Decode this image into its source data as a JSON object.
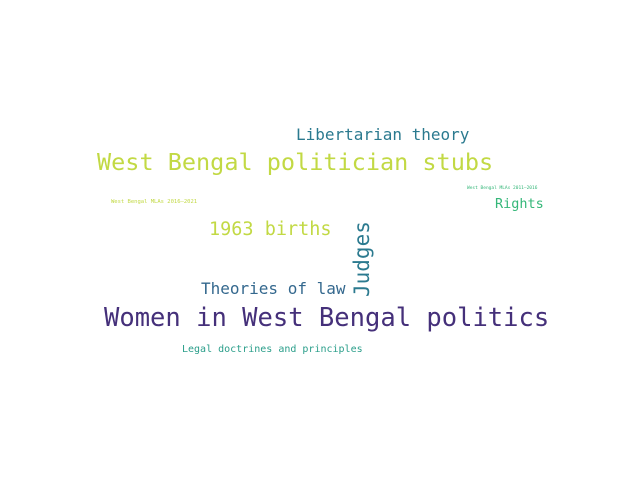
{
  "words": [
    {
      "text": "Libertarian theory",
      "color": "#2b7a8f"
    },
    {
      "text": "West Bengal politician stubs",
      "color": "#c2d944"
    },
    {
      "text": "West Bengal MLAs 2011–2016",
      "color": "#35b779"
    },
    {
      "text": "West Bengal MLAs 2016–2021",
      "color": "#c2d944"
    },
    {
      "text": "Rights",
      "color": "#35b779"
    },
    {
      "text": "1963 births",
      "color": "#c2d944"
    },
    {
      "text": "Judges",
      "color": "#2b7a8f"
    },
    {
      "text": "Theories of law",
      "color": "#34688e"
    },
    {
      "text": "Women in West Bengal politics",
      "color": "#45307a"
    },
    {
      "text": "Legal doctrines and principles",
      "color": "#2a9e8a"
    }
  ]
}
